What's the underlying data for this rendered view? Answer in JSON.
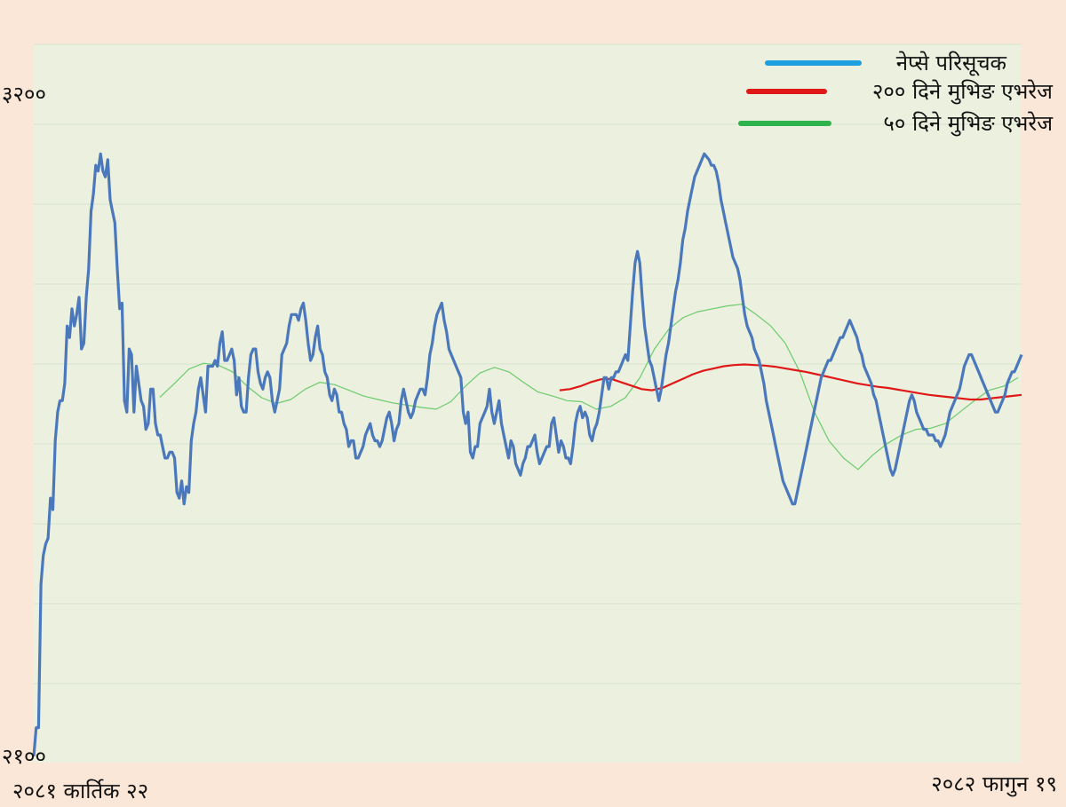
{
  "chart_data": {
    "type": "line",
    "title": "",
    "xlabel": "",
    "ylabel": "",
    "x_start_label": "२०८१ कार्तिक २२",
    "x_end_label": "२०८२ फागुन १९",
    "y_tick_labels": [
      "३२००",
      "२१००"
    ],
    "ylim": [
      2100,
      3200
    ],
    "y_top_label_value": 3200,
    "y_bottom_label_value": 2100,
    "grid": true,
    "legend_position": "top-right",
    "series": [
      {
        "name": "नेप्से परिसूचक",
        "legend_color": "#1ea0e0",
        "color": "#4a78bb",
        "values": [
          2100,
          2150,
          2150,
          2400,
          2450,
          2470,
          2480,
          2550,
          2530,
          2650,
          2700,
          2720,
          2720,
          2750,
          2850,
          2830,
          2880,
          2850,
          2870,
          2900,
          2810,
          2820,
          2900,
          2950,
          3050,
          3080,
          3130,
          3120,
          3150,
          3120,
          3110,
          3140,
          3070,
          3050,
          3030,
          2950,
          2880,
          2890,
          2720,
          2700,
          2810,
          2800,
          2700,
          2780,
          2750,
          2720,
          2710,
          2670,
          2680,
          2740,
          2740,
          2680,
          2660,
          2660,
          2640,
          2620,
          2620,
          2630,
          2630,
          2620,
          2560,
          2550,
          2580,
          2540,
          2570,
          2560,
          2650,
          2680,
          2700,
          2740,
          2760,
          2730,
          2700,
          2780,
          2780,
          2780,
          2790,
          2780,
          2820,
          2840,
          2790,
          2790,
          2800,
          2810,
          2790,
          2730,
          2760,
          2710,
          2700,
          2700,
          2760,
          2800,
          2810,
          2810,
          2770,
          2750,
          2740,
          2760,
          2770,
          2760,
          2720,
          2700,
          2720,
          2740,
          2800,
          2810,
          2820,
          2850,
          2870,
          2870,
          2870,
          2860,
          2880,
          2890,
          2860,
          2820,
          2790,
          2800,
          2830,
          2850,
          2810,
          2800,
          2770,
          2760,
          2730,
          2720,
          2740,
          2730,
          2700,
          2700,
          2680,
          2670,
          2640,
          2650,
          2650,
          2620,
          2620,
          2630,
          2640,
          2660,
          2670,
          2680,
          2660,
          2650,
          2650,
          2640,
          2650,
          2670,
          2690,
          2700,
          2680,
          2650,
          2670,
          2680,
          2720,
          2740,
          2720,
          2700,
          2690,
          2700,
          2720,
          2730,
          2740,
          2740,
          2730,
          2760,
          2800,
          2820,
          2850,
          2870,
          2880,
          2890,
          2860,
          2840,
          2810,
          2800,
          2790,
          2780,
          2770,
          2760,
          2700,
          2680,
          2700,
          2630,
          2620,
          2640,
          2640,
          2680,
          2690,
          2700,
          2710,
          2740,
          2700,
          2680,
          2700,
          2720,
          2680,
          2660,
          2640,
          2620,
          2650,
          2640,
          2610,
          2600,
          2590,
          2610,
          2620,
          2640,
          2640,
          2650,
          2660,
          2630,
          2610,
          2620,
          2630,
          2640,
          2640,
          2680,
          2690,
          2660,
          2630,
          2650,
          2640,
          2620,
          2620,
          2610,
          2640,
          2680,
          2700,
          2710,
          2690,
          2700,
          2690,
          2660,
          2650,
          2670,
          2680,
          2700,
          2730,
          2760,
          2760,
          2740,
          2760,
          2760,
          2770,
          2770,
          2780,
          2790,
          2800,
          2790,
          2850,
          2910,
          2960,
          2980,
          2960,
          2900,
          2850,
          2820,
          2790,
          2780,
          2760,
          2740,
          2720,
          2740,
          2770,
          2800,
          2820,
          2850,
          2880,
          2910,
          2930,
          2960,
          3000,
          3020,
          3050,
          3070,
          3090,
          3110,
          3120,
          3130,
          3140,
          3150,
          3145,
          3140,
          3130,
          3130,
          3120,
          3100,
          3070,
          3050,
          3030,
          3010,
          2990,
          2970,
          2960,
          2950,
          2930,
          2900,
          2870,
          2850,
          2840,
          2830,
          2810,
          2800,
          2790,
          2770,
          2750,
          2720,
          2700,
          2680,
          2660,
          2640,
          2620,
          2600,
          2580,
          2570,
          2560,
          2550,
          2540,
          2540,
          2560,
          2580,
          2600,
          2620,
          2640,
          2660,
          2680,
          2700,
          2720,
          2740,
          2760,
          2770,
          2780,
          2790,
          2790,
          2800,
          2810,
          2820,
          2830,
          2830,
          2840,
          2850,
          2860,
          2850,
          2840,
          2830,
          2810,
          2800,
          2780,
          2770,
          2760,
          2750,
          2730,
          2720,
          2700,
          2680,
          2660,
          2640,
          2620,
          2600,
          2590,
          2600,
          2620,
          2640,
          2660,
          2680,
          2700,
          2720,
          2730,
          2720,
          2700,
          2690,
          2680,
          2670,
          2670,
          2660,
          2660,
          2660,
          2650,
          2650,
          2640,
          2650,
          2660,
          2680,
          2700,
          2710,
          2720,
          2730,
          2740,
          2760,
          2780,
          2790,
          2800,
          2800,
          2790,
          2780,
          2770,
          2760,
          2750,
          2740,
          2730,
          2720,
          2710,
          2700,
          2700,
          2710,
          2720,
          2730,
          2750,
          2760,
          2770,
          2770,
          2780,
          2790,
          2800
        ]
      },
      {
        "name": "२०० दिने मुभिङ एभरेज",
        "legend_color": "#e01818",
        "color": "#e01818",
        "values": [
          2738,
          2740,
          2745,
          2752,
          2757,
          2758,
          2752,
          2746,
          2740,
          2738,
          2742,
          2750,
          2758,
          2766,
          2772,
          2776,
          2780,
          2782,
          2783,
          2782,
          2781,
          2779,
          2776,
          2773,
          2770,
          2766,
          2762,
          2758,
          2754,
          2750,
          2747,
          2744,
          2742,
          2739,
          2736,
          2733,
          2730,
          2728,
          2726,
          2724,
          2722,
          2722,
          2724,
          2726,
          2728,
          2730
        ]
      },
      {
        "name": "५० दिने मुभिङ एभरेज",
        "legend_color": "#2fb34c",
        "color": "#6ccb6c",
        "values": [
          2726,
          2750,
          2775,
          2785,
          2782,
          2770,
          2745,
          2725,
          2715,
          2722,
          2740,
          2752,
          2748,
          2738,
          2728,
          2722,
          2716,
          2712,
          2708,
          2705,
          2718,
          2745,
          2768,
          2778,
          2770,
          2752,
          2735,
          2728,
          2720,
          2718,
          2705,
          2710,
          2725,
          2760,
          2810,
          2845,
          2865,
          2875,
          2880,
          2885,
          2888,
          2870,
          2850,
          2820,
          2770,
          2700,
          2650,
          2620,
          2600,
          2625,
          2645,
          2660,
          2670,
          2672,
          2680,
          2700,
          2720,
          2738,
          2745,
          2760
        ]
      }
    ]
  }
}
